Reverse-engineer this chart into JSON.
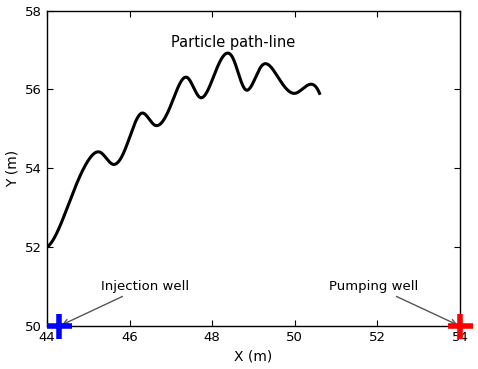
{
  "xlim": [
    44,
    54
  ],
  "ylim": [
    50,
    58
  ],
  "xticks": [
    44,
    46,
    48,
    50,
    52,
    54
  ],
  "yticks": [
    50,
    52,
    54,
    56,
    58
  ],
  "xlabel": "X (m)",
  "ylabel": "Y (m)",
  "injection_well_x": 44.3,
  "injection_well_y": 50.0,
  "pumping_well_x": 54.0,
  "pumping_well_y": 50.0,
  "injection_label": "Injection well",
  "pumping_label": "Pumping well",
  "pathline_label": "Particle path-line",
  "line_color": "#000000",
  "injection_color": "#0000ff",
  "pumping_color": "#ff0000",
  "background_color": "#ffffff",
  "figsize": [
    4.78,
    3.69
  ],
  "dpi": 100,
  "path_keypoints_x": [
    44.0,
    44.3,
    44.6,
    45.0,
    45.3,
    45.6,
    45.9,
    46.3,
    46.6,
    47.0,
    47.4,
    47.7,
    48.1,
    48.5,
    48.8,
    49.2,
    49.6,
    50.0,
    50.3,
    50.6
  ],
  "path_keypoints_y": [
    52.0,
    52.5,
    53.3,
    54.2,
    54.4,
    54.1,
    54.5,
    55.4,
    55.1,
    55.6,
    56.3,
    55.8,
    56.5,
    56.8,
    56.0,
    56.6,
    56.3,
    55.9,
    56.1,
    55.9
  ]
}
